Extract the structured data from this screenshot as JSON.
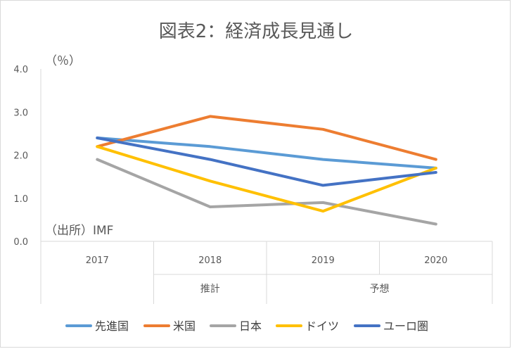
{
  "chart_data": {
    "type": "line",
    "title": "図表2：経済成長見通し",
    "unit_label": "（％）",
    "source_note": "（出所）IMF",
    "categories": [
      "2017",
      "2018",
      "2019",
      "2020"
    ],
    "category_groups": [
      {
        "label": "推計",
        "from": 1,
        "to": 1
      },
      {
        "label": "予想",
        "from": 2,
        "to": 3
      }
    ],
    "ylim": [
      0,
      4
    ],
    "yticks": [
      "0.0",
      "1.0",
      "2.0",
      "3.0",
      "4.0"
    ],
    "grid": false,
    "legend_position": "bottom",
    "series": [
      {
        "name": "先進国",
        "color": "#5B9BD5",
        "values": [
          2.4,
          2.2,
          1.9,
          1.7
        ]
      },
      {
        "name": "米国",
        "color": "#ED7D31",
        "values": [
          2.2,
          2.9,
          2.6,
          1.9
        ]
      },
      {
        "name": "日本",
        "color": "#A5A5A5",
        "values": [
          1.9,
          0.8,
          0.9,
          0.4
        ]
      },
      {
        "name": "ドイツ",
        "color": "#FFC000",
        "values": [
          2.2,
          1.4,
          0.7,
          1.7
        ]
      },
      {
        "name": "ユーロ圏",
        "color": "#4472C4",
        "values": [
          2.4,
          1.9,
          1.3,
          1.6
        ]
      }
    ]
  }
}
